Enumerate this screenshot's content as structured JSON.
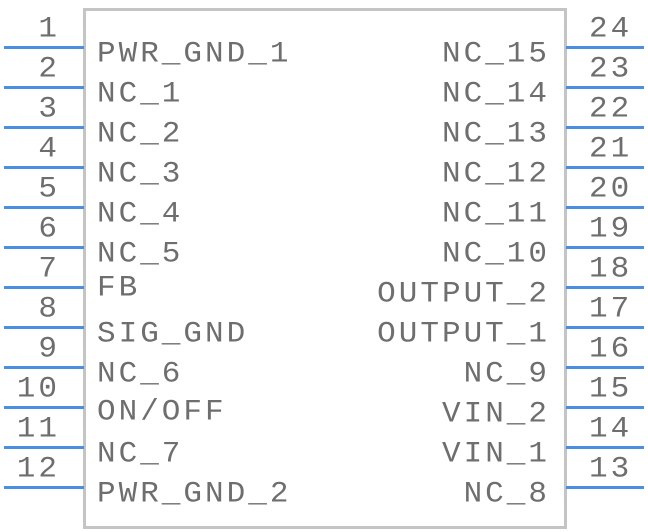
{
  "colors": {
    "pin": "#4a8fe0",
    "body_border": "#c4c4c4",
    "text": "#6e6e6e"
  },
  "left_pins": [
    {
      "number": "1",
      "label": "PWR_GND_1"
    },
    {
      "number": "2",
      "label": "NC_1"
    },
    {
      "number": "3",
      "label": "NC_2"
    },
    {
      "number": "4",
      "label": "NC_3"
    },
    {
      "number": "5",
      "label": "NC_4"
    },
    {
      "number": "6",
      "label": "NC_5"
    },
    {
      "number": "7",
      "label": "FB"
    },
    {
      "number": "8",
      "label": "SIG_GND"
    },
    {
      "number": "9",
      "label": "NC_6"
    },
    {
      "number": "10",
      "label": "ON/OFF"
    },
    {
      "number": "11",
      "label": "NC_7"
    },
    {
      "number": "12",
      "label": "PWR_GND_2"
    }
  ],
  "right_pins": [
    {
      "number": "24",
      "label": "NC_15"
    },
    {
      "number": "23",
      "label": "NC_14"
    },
    {
      "number": "22",
      "label": "NC_13"
    },
    {
      "number": "21",
      "label": "NC_12"
    },
    {
      "number": "20",
      "label": "NC_11"
    },
    {
      "number": "19",
      "label": "NC_10"
    },
    {
      "number": "18",
      "label": "OUTPUT_2"
    },
    {
      "number": "17",
      "label": "OUTPUT_1"
    },
    {
      "number": "16",
      "label": "NC_9"
    },
    {
      "number": "15",
      "label": "VIN_2"
    },
    {
      "number": "14",
      "label": "VIN_1"
    },
    {
      "number": "13",
      "label": "NC_8"
    }
  ]
}
